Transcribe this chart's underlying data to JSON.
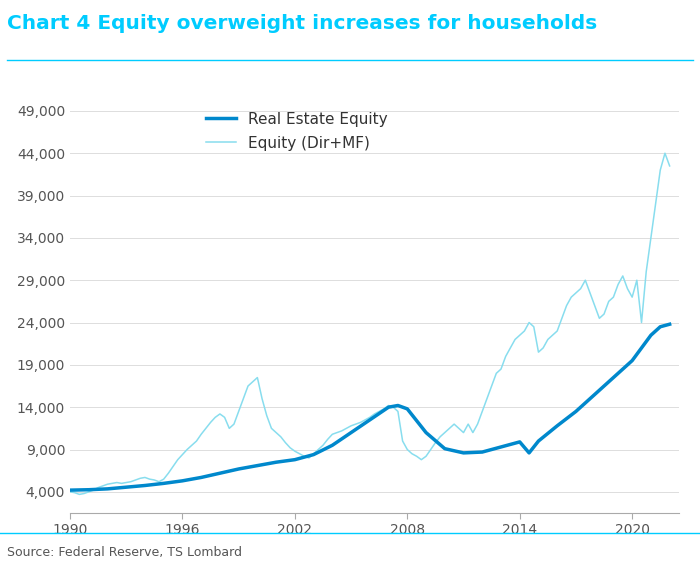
{
  "title": "Chart 4 Equity overweight increases for households",
  "title_color": "#00ccff",
  "source_text": "Source: Federal Reserve, TS Lombard",
  "legend_real_estate": "Real Estate Equity",
  "legend_equity": "Equity (Dir+MF)",
  "real_estate_color": "#0088cc",
  "equity_color": "#88ddee",
  "real_estate_linewidth": 2.5,
  "equity_linewidth": 1.1,
  "ylim": [
    1500,
    52000
  ],
  "yticks": [
    4000,
    9000,
    14000,
    19000,
    24000,
    29000,
    34000,
    39000,
    44000,
    49000
  ],
  "xlim": [
    1990,
    2022.5
  ],
  "xticks": [
    1990,
    1996,
    2002,
    2008,
    2014,
    2020
  ],
  "background_color": "#ffffff",
  "real_estate_x": [
    1990,
    1991,
    1992,
    1993,
    1994,
    1995,
    1996,
    1997,
    1998,
    1999,
    2000,
    2001,
    2002,
    2003,
    2004,
    2005,
    2006,
    2007,
    2007.5,
    2008,
    2009,
    2010,
    2011,
    2012,
    2013,
    2014,
    2014.5,
    2015,
    2016,
    2017,
    2018,
    2019,
    2020,
    2020.5,
    2021,
    2021.5,
    2022
  ],
  "real_estate_y": [
    4200,
    4250,
    4350,
    4550,
    4750,
    5000,
    5300,
    5700,
    6200,
    6700,
    7100,
    7500,
    7800,
    8400,
    9500,
    11000,
    12500,
    14000,
    14200,
    13800,
    11000,
    9100,
    8600,
    8700,
    9300,
    9900,
    8600,
    10000,
    11800,
    13500,
    15500,
    17500,
    19500,
    21000,
    22500,
    23500,
    23800
  ],
  "equity_x": [
    1990.0,
    1990.25,
    1990.5,
    1990.75,
    1991.0,
    1991.25,
    1991.5,
    1991.75,
    1992.0,
    1992.25,
    1992.5,
    1992.75,
    1993.0,
    1993.25,
    1993.5,
    1993.75,
    1994.0,
    1994.25,
    1994.5,
    1994.75,
    1995.0,
    1995.25,
    1995.5,
    1995.75,
    1996.0,
    1996.25,
    1996.5,
    1996.75,
    1997.0,
    1997.25,
    1997.5,
    1997.75,
    1998.0,
    1998.25,
    1998.5,
    1998.75,
    1999.0,
    1999.25,
    1999.5,
    1999.75,
    2000.0,
    2000.25,
    2000.5,
    2000.75,
    2001.0,
    2001.25,
    2001.5,
    2001.75,
    2002.0,
    2002.25,
    2002.5,
    2002.75,
    2003.0,
    2003.25,
    2003.5,
    2003.75,
    2004.0,
    2004.25,
    2004.5,
    2004.75,
    2005.0,
    2005.25,
    2005.5,
    2005.75,
    2006.0,
    2006.25,
    2006.5,
    2006.75,
    2007.0,
    2007.25,
    2007.5,
    2007.75,
    2008.0,
    2008.25,
    2008.5,
    2008.75,
    2009.0,
    2009.25,
    2009.5,
    2009.75,
    2010.0,
    2010.25,
    2010.5,
    2010.75,
    2011.0,
    2011.25,
    2011.5,
    2011.75,
    2012.0,
    2012.25,
    2012.5,
    2012.75,
    2013.0,
    2013.25,
    2013.5,
    2013.75,
    2014.0,
    2014.25,
    2014.5,
    2014.75,
    2015.0,
    2015.25,
    2015.5,
    2015.75,
    2016.0,
    2016.25,
    2016.5,
    2016.75,
    2017.0,
    2017.25,
    2017.5,
    2017.75,
    2018.0,
    2018.25,
    2018.5,
    2018.75,
    2019.0,
    2019.25,
    2019.5,
    2019.75,
    2020.0,
    2020.25,
    2020.5,
    2020.75,
    2021.0,
    2021.25,
    2021.5,
    2021.75,
    2022.0
  ],
  "equity_y": [
    4000,
    3900,
    3700,
    3800,
    4000,
    4200,
    4500,
    4700,
    4900,
    5000,
    5100,
    5000,
    5100,
    5200,
    5400,
    5600,
    5700,
    5500,
    5400,
    5200,
    5500,
    6200,
    7000,
    7800,
    8400,
    9000,
    9500,
    10000,
    10800,
    11500,
    12200,
    12800,
    13200,
    12800,
    11500,
    12000,
    13500,
    15000,
    16500,
    17000,
    17500,
    15000,
    13000,
    11500,
    11000,
    10500,
    9800,
    9200,
    8800,
    8500,
    8200,
    8000,
    8500,
    9000,
    9500,
    10200,
    10800,
    11000,
    11200,
    11500,
    11800,
    12000,
    12200,
    12500,
    12800,
    13200,
    13500,
    13800,
    14200,
    14000,
    13500,
    10000,
    9000,
    8500,
    8200,
    7800,
    8200,
    9000,
    9800,
    10500,
    11000,
    11500,
    12000,
    11500,
    11000,
    12000,
    11000,
    12000,
    13500,
    15000,
    16500,
    18000,
    18500,
    20000,
    21000,
    22000,
    22500,
    23000,
    24000,
    23500,
    20500,
    21000,
    22000,
    22500,
    23000,
    24500,
    26000,
    27000,
    27500,
    28000,
    29000,
    27500,
    26000,
    24500,
    25000,
    26500,
    27000,
    28500,
    29500,
    28000,
    27000,
    29000,
    24000,
    30000,
    34000,
    38000,
    42000,
    44000,
    42500
  ]
}
